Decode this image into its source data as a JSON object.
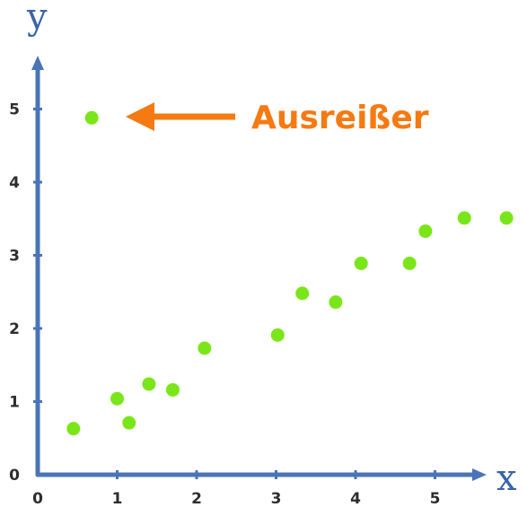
{
  "chart_data": {
    "type": "scatter",
    "xlabel": "x",
    "ylabel": "y",
    "xlim": [
      0,
      6
    ],
    "ylim": [
      0,
      5.6
    ],
    "x_ticks": [
      0,
      1,
      2,
      3,
      4,
      5
    ],
    "y_ticks": [
      0,
      1,
      2,
      3,
      4,
      5
    ],
    "grid": false,
    "point_color": "#7ae619",
    "axis_color": "#4a74b8",
    "points": [
      {
        "x": 0.45,
        "y": 0.63
      },
      {
        "x": 0.68,
        "y": 4.88
      },
      {
        "x": 1.0,
        "y": 1.04
      },
      {
        "x": 1.15,
        "y": 0.71
      },
      {
        "x": 1.4,
        "y": 1.24
      },
      {
        "x": 1.7,
        "y": 1.16
      },
      {
        "x": 2.1,
        "y": 1.73
      },
      {
        "x": 3.02,
        "y": 1.91
      },
      {
        "x": 3.33,
        "y": 2.48
      },
      {
        "x": 3.75,
        "y": 2.36
      },
      {
        "x": 4.07,
        "y": 2.89
      },
      {
        "x": 4.68,
        "y": 2.89
      },
      {
        "x": 4.88,
        "y": 3.33
      },
      {
        "x": 5.37,
        "y": 3.51
      },
      {
        "x": 5.9,
        "y": 3.51
      }
    ],
    "annotation": {
      "text": "Ausreißer",
      "color": "#f57a12",
      "points_to": {
        "x": 0.68,
        "y": 4.88
      }
    }
  }
}
